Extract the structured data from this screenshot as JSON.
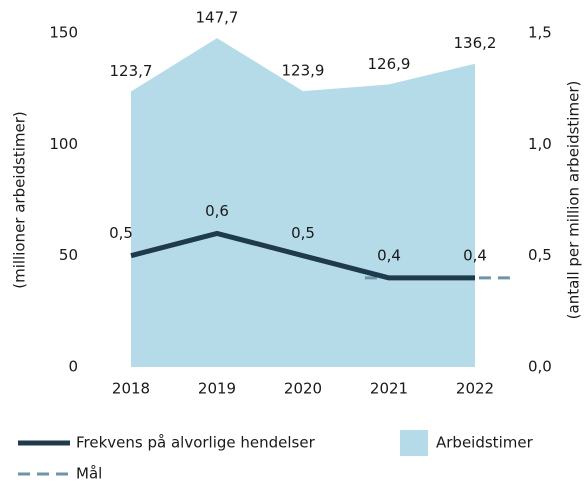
{
  "chart_data": {
    "type": "area-line",
    "categories": [
      "2018",
      "2019",
      "2020",
      "2021",
      "2022"
    ],
    "ylabel": "(millioner arbeidstimer)",
    "y2label": "(antall per million arbeidstimer)",
    "ylim": [
      0,
      150
    ],
    "yticks": [
      0,
      50,
      100,
      150
    ],
    "y2lim": [
      0,
      1.5
    ],
    "y2ticks": [
      {
        "value": 0,
        "label": "0,0"
      },
      {
        "value": 0.5,
        "label": "0,5"
      },
      {
        "value": 1,
        "label": "1,0"
      },
      {
        "value": 1.5,
        "label": "1,5"
      }
    ],
    "series": [
      {
        "name": "Arbeidstimer",
        "kind": "area",
        "color": "#b5dbe9",
        "values": [
          123.7,
          147.7,
          123.9,
          126.9,
          136.2
        ],
        "value_labels": [
          "123,7",
          "147,7",
          "123,9",
          "126,9",
          "136,2"
        ]
      },
      {
        "name": "Frekvens på alvorlige hendelser",
        "kind": "line",
        "axis": "y2",
        "color": "#1e3a4c",
        "values": [
          0.5,
          0.6,
          0.5,
          0.4,
          0.4
        ],
        "value_labels": [
          "0,5",
          "0,6",
          "0,5",
          "0,4",
          "0,4"
        ]
      },
      {
        "name": "Mål",
        "kind": "dashed",
        "axis": "y2",
        "color": "#6f93a7",
        "values": [
          null,
          null,
          null,
          0.4,
          0.4
        ]
      }
    ]
  }
}
